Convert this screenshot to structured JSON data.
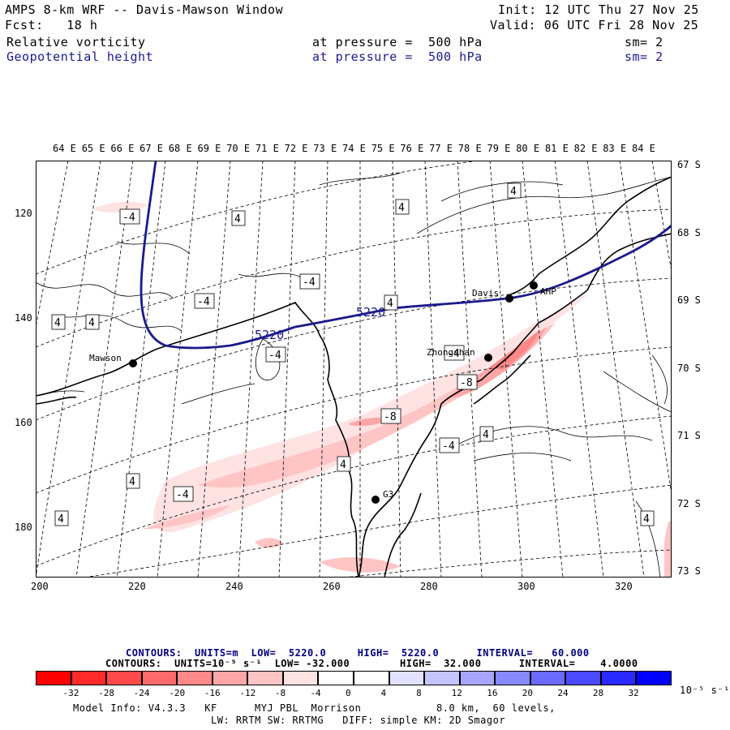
{
  "header": {
    "title": "AMPS 8-km WRF -- Davis-Mawson Window",
    "init": "Init: 12 UTC Thu 27 Nov 25",
    "fcst": "Fcst:   18 h",
    "valid": "Valid: 06 UTC Fri 28 Nov 25",
    "field1": {
      "name": "Relative vorticity",
      "level": "at pressure =  500 hPa",
      "sm": "sm= 2"
    },
    "field2": {
      "name": "Geopotential height",
      "level": "at pressure =  500 hPa",
      "sm": "sm= 2"
    }
  },
  "map": {
    "lon_labels": [
      "64 E",
      "65 E",
      "66 E",
      "67 E",
      "68 E",
      "69 E",
      "70 E",
      "71 E",
      "72 E",
      "73 E",
      "74 E",
      "75 E",
      "76 E",
      "77 E",
      "78 E",
      "79 E",
      "80 E",
      "81 E",
      "82 E",
      "83 E",
      "84 E"
    ],
    "lat_labels": [
      "67 S",
      "68 S",
      "69 S",
      "70 S",
      "71 S",
      "72 S",
      "73 S"
    ],
    "y_ticks": [
      "120",
      "140",
      "160",
      "180"
    ],
    "x_ticks": [
      "200",
      "220",
      "240",
      "260",
      "280",
      "300",
      "320"
    ],
    "stations": [
      {
        "name": "Mawson"
      },
      {
        "name": "Davis"
      },
      {
        "name": "AHP"
      },
      {
        "name": "Zhongshan"
      },
      {
        "name": "G3"
      }
    ],
    "height_labels": [
      "5220",
      "5220"
    ],
    "vort_labels": [
      "-4",
      "4",
      "4",
      "4",
      "-4",
      "-4",
      "4",
      "4",
      "4",
      "-4",
      "-8",
      "-4",
      "-8",
      "-4",
      "4",
      "4",
      "4",
      "-4",
      "4",
      "4"
    ]
  },
  "legend": {
    "line1": "CONTOURS:  UNITS=m  LOW=  5220.0     HIGH=  5220.0      INTERVAL=   60.000",
    "line2": "CONTOURS:  UNITS=10⁻⁵ s⁻¹  LOW= -32.000        HIGH=  32.000      INTERVAL=    4.0000",
    "colorbar_colors": [
      "#ff0000",
      "#ff2a2a",
      "#ff4a4a",
      "#ff6a6a",
      "#ff8888",
      "#ffa6a6",
      "#ffc4c4",
      "#ffe2e2",
      "#ffffff",
      "#ffffff",
      "#e2e2ff",
      "#c4c4ff",
      "#a6a6ff",
      "#8888ff",
      "#6a6aff",
      "#4a4aff",
      "#2a2aff",
      "#0000ff"
    ],
    "colorbar_labels": [
      "-32",
      "-28",
      "-24",
      "-20",
      "-16",
      "-12",
      "-8",
      "-4",
      "0",
      "4",
      "8",
      "12",
      "16",
      "20",
      "24",
      "28",
      "32"
    ],
    "units": "10⁻⁵ s⁻¹"
  },
  "footer": {
    "line1": "Model Info: V4.3.3   KF      MYJ PBL  Morrison            8.0 km,  60 levels,",
    "line2": "LW: RRTM SW: RRTMG   DIFF: simple KM: 2D Smagor"
  }
}
